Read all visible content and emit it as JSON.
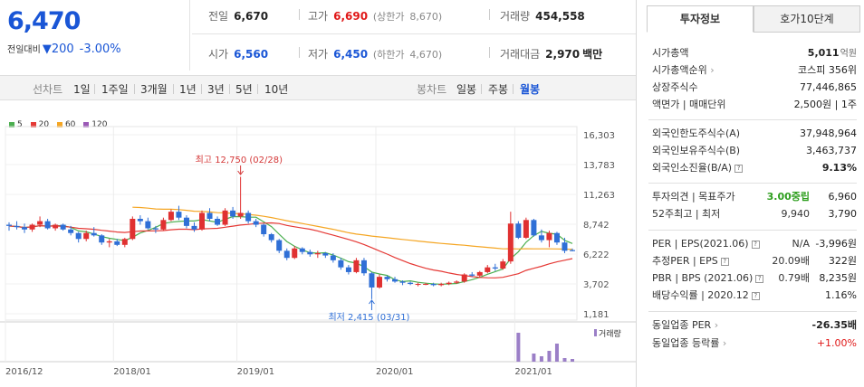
{
  "price": {
    "current": "6,470",
    "compare_label": "전일대비",
    "change": "200",
    "rate": "-3.00%"
  },
  "summary": {
    "prev_label": "전일",
    "prev": "6,670",
    "high_label": "고가",
    "high": "6,690",
    "upper_label": "(상한가",
    "upper": "8,670)",
    "volume_label": "거래량",
    "volume": "454,558",
    "open_label": "시가",
    "open": "6,560",
    "low_label": "저가",
    "low": "6,450",
    "lower_label": "(하한가",
    "lower": "4,670)",
    "amount_label": "거래대금",
    "amount": "2,970",
    "amount_unit": "백만"
  },
  "period_tabs": {
    "line_label": "선차트",
    "items": [
      "1일",
      "1주일",
      "3개월",
      "1년",
      "3년",
      "5년",
      "10년"
    ],
    "candle_label": "봉차트",
    "candle_items": [
      "일봉",
      "주봉",
      "월봉"
    ],
    "selected": "월봉"
  },
  "right_tabs": [
    "투자정보",
    "호가10단계"
  ],
  "invest": {
    "rows1": [
      {
        "k": "시가총액",
        "v": "5,011",
        "u": "억원"
      },
      {
        "k": "시가총액순위",
        "v": "코스피 356위"
      },
      {
        "k": "상장주식수",
        "v": "77,446,865"
      },
      {
        "k": "액면가 | 매매단위",
        "v": "2,500원 | 1주"
      }
    ],
    "rows2": [
      {
        "k": "외국인한도주식수(A)",
        "v": "37,948,964"
      },
      {
        "k": "외국인보유주식수(B)",
        "v": "3,463,737"
      },
      {
        "k": "외국인소진율(B/A)",
        "v": "9.13%"
      }
    ],
    "rows3": [
      {
        "k": "투자의견 | 목표주가",
        "v1": "3.00중립",
        "v2": "6,960"
      },
      {
        "k": "52주최고 | 최저",
        "v1": "9,940",
        "v2": "3,790"
      }
    ],
    "rows4": [
      {
        "k": "PER | EPS(2021.06)",
        "v1": "N/A",
        "v2": "-3,996원"
      },
      {
        "k": "추정PER | EPS",
        "v1": "20.09배",
        "v2": "322원"
      },
      {
        "k": "PBR | BPS (2021.06)",
        "v1": "0.79배",
        "v2": "8,235원"
      },
      {
        "k": "배당수익률 | 2020.12",
        "v1": "",
        "v2": "1.16%"
      }
    ],
    "rows5": [
      {
        "k": "동일업종 PER",
        "v": "-26.35배"
      },
      {
        "k": "동일업종 등락률",
        "v": "+1.00%"
      }
    ]
  },
  "chart_data": {
    "type": "candlestick",
    "legend": [
      "5",
      "20",
      "60",
      "120"
    ],
    "legend_colors": [
      "#4caf50",
      "#e53935",
      "#f5a623",
      "#9b59b6"
    ],
    "y_ticks": [
      "16,303",
      "13,783",
      "11,263",
      "8,742",
      "6,222",
      "3,702",
      "1,181"
    ],
    "x_ticks": [
      "2016/12",
      "2018/01",
      "2019/01",
      "2020/01",
      "2021/01"
    ],
    "high_annotation": "최고 12,750 (02/28)",
    "low_annotation": "최저 2,415 (03/31)",
    "volume_label": "거래량",
    "candles": [
      [
        8700,
        8900,
        8200,
        8600
      ],
      [
        8600,
        9000,
        8300,
        8500
      ],
      [
        8500,
        8800,
        8000,
        8300
      ],
      [
        8300,
        8800,
        8100,
        8700
      ],
      [
        8700,
        9400,
        8500,
        9000
      ],
      [
        9000,
        9200,
        8300,
        8400
      ],
      [
        8400,
        8800,
        8200,
        8700
      ],
      [
        8700,
        8800,
        8200,
        8300
      ],
      [
        8300,
        8600,
        7800,
        8000
      ],
      [
        8000,
        8100,
        7200,
        7500
      ],
      [
        7500,
        8200,
        7300,
        8000
      ],
      [
        8000,
        8500,
        7700,
        7800
      ],
      [
        7800,
        7900,
        7000,
        7200
      ],
      [
        7200,
        7500,
        6800,
        7300
      ],
      [
        7300,
        7500,
        6900,
        7000
      ],
      [
        7000,
        7600,
        6800,
        7500
      ],
      [
        7500,
        9400,
        7400,
        9200
      ],
      [
        9200,
        9500,
        8700,
        9000
      ],
      [
        9000,
        9300,
        8300,
        8400
      ],
      [
        8400,
        8600,
        8000,
        8300
      ],
      [
        8300,
        9300,
        8200,
        9100
      ],
      [
        9100,
        10000,
        9000,
        9800
      ],
      [
        9800,
        10300,
        9100,
        9300
      ],
      [
        9300,
        9500,
        8400,
        8600
      ],
      [
        8600,
        8900,
        8100,
        8300
      ],
      [
        8300,
        9900,
        8200,
        9700
      ],
      [
        9700,
        10100,
        9000,
        9200
      ],
      [
        9200,
        9400,
        8600,
        8700
      ],
      [
        8700,
        10100,
        8600,
        9900
      ],
      [
        9900,
        10200,
        9200,
        9400
      ],
      [
        9400,
        12750,
        9200,
        9700
      ],
      [
        9700,
        9900,
        8800,
        9000
      ],
      [
        9000,
        9200,
        8500,
        8700
      ],
      [
        8700,
        8800,
        7700,
        7900
      ],
      [
        7900,
        8000,
        7200,
        7400
      ],
      [
        7400,
        7500,
        6300,
        6500
      ],
      [
        6500,
        6700,
        5700,
        5900
      ],
      [
        5900,
        6900,
        5800,
        6700
      ],
      [
        6700,
        6800,
        6200,
        6400
      ],
      [
        6400,
        6600,
        6000,
        6200
      ],
      [
        6200,
        6500,
        5900,
        6300
      ],
      [
        6300,
        6400,
        5900,
        6100
      ],
      [
        6100,
        6300,
        5500,
        5700
      ],
      [
        5700,
        5900,
        4900,
        5100
      ],
      [
        5100,
        5300,
        4500,
        4700
      ],
      [
        4700,
        5900,
        4600,
        5700
      ],
      [
        5700,
        5900,
        4400,
        4600
      ],
      [
        4600,
        4700,
        2415,
        3400
      ],
      [
        3400,
        4500,
        3300,
        4300
      ],
      [
        4300,
        4400,
        3900,
        4100
      ],
      [
        4100,
        4300,
        3800,
        3900
      ],
      [
        3900,
        4000,
        3600,
        3800
      ],
      [
        3800,
        3900,
        3600,
        3700
      ],
      [
        3700,
        3800,
        3500,
        3700
      ],
      [
        3700,
        3800,
        3600,
        3700
      ],
      [
        3700,
        3800,
        3500,
        3600
      ],
      [
        3600,
        3800,
        3500,
        3700
      ],
      [
        3700,
        3900,
        3600,
        3800
      ],
      [
        3800,
        4000,
        3700,
        3900
      ],
      [
        3900,
        4600,
        3800,
        4500
      ],
      [
        4500,
        4700,
        4300,
        4400
      ],
      [
        4400,
        4800,
        4200,
        4700
      ],
      [
        4700,
        5300,
        4600,
        5100
      ],
      [
        5100,
        5400,
        4800,
        5000
      ],
      [
        5000,
        5800,
        4900,
        5600
      ],
      [
        5600,
        9800,
        5400,
        8800
      ],
      [
        8800,
        9000,
        7500,
        7600
      ],
      [
        7600,
        9300,
        7500,
        9100
      ],
      [
        9100,
        9200,
        7700,
        7800
      ],
      [
        7800,
        8300,
        7200,
        7400
      ],
      [
        7400,
        8200,
        6800,
        8000
      ],
      [
        8000,
        8100,
        7000,
        7200
      ],
      [
        7200,
        7600,
        6300,
        6500
      ],
      [
        6560,
        6690,
        6450,
        6470
      ]
    ],
    "volumes": [
      0,
      0,
      0,
      0,
      0,
      0,
      0,
      0,
      0,
      0,
      0,
      0,
      0,
      0,
      0,
      0,
      0,
      0,
      0,
      0,
      0,
      0,
      0,
      0,
      0,
      0,
      0,
      0,
      0,
      0,
      0,
      0,
      0,
      0,
      0,
      0,
      0,
      0,
      0,
      0,
      0,
      0,
      0,
      0,
      0,
      0,
      0,
      0,
      0,
      0,
      0,
      0,
      0,
      0,
      0,
      0,
      0,
      0,
      0,
      0,
      0,
      0,
      0,
      0,
      0,
      0,
      0,
      0,
      0,
      0,
      0,
      0,
      0,
      0
    ]
  }
}
